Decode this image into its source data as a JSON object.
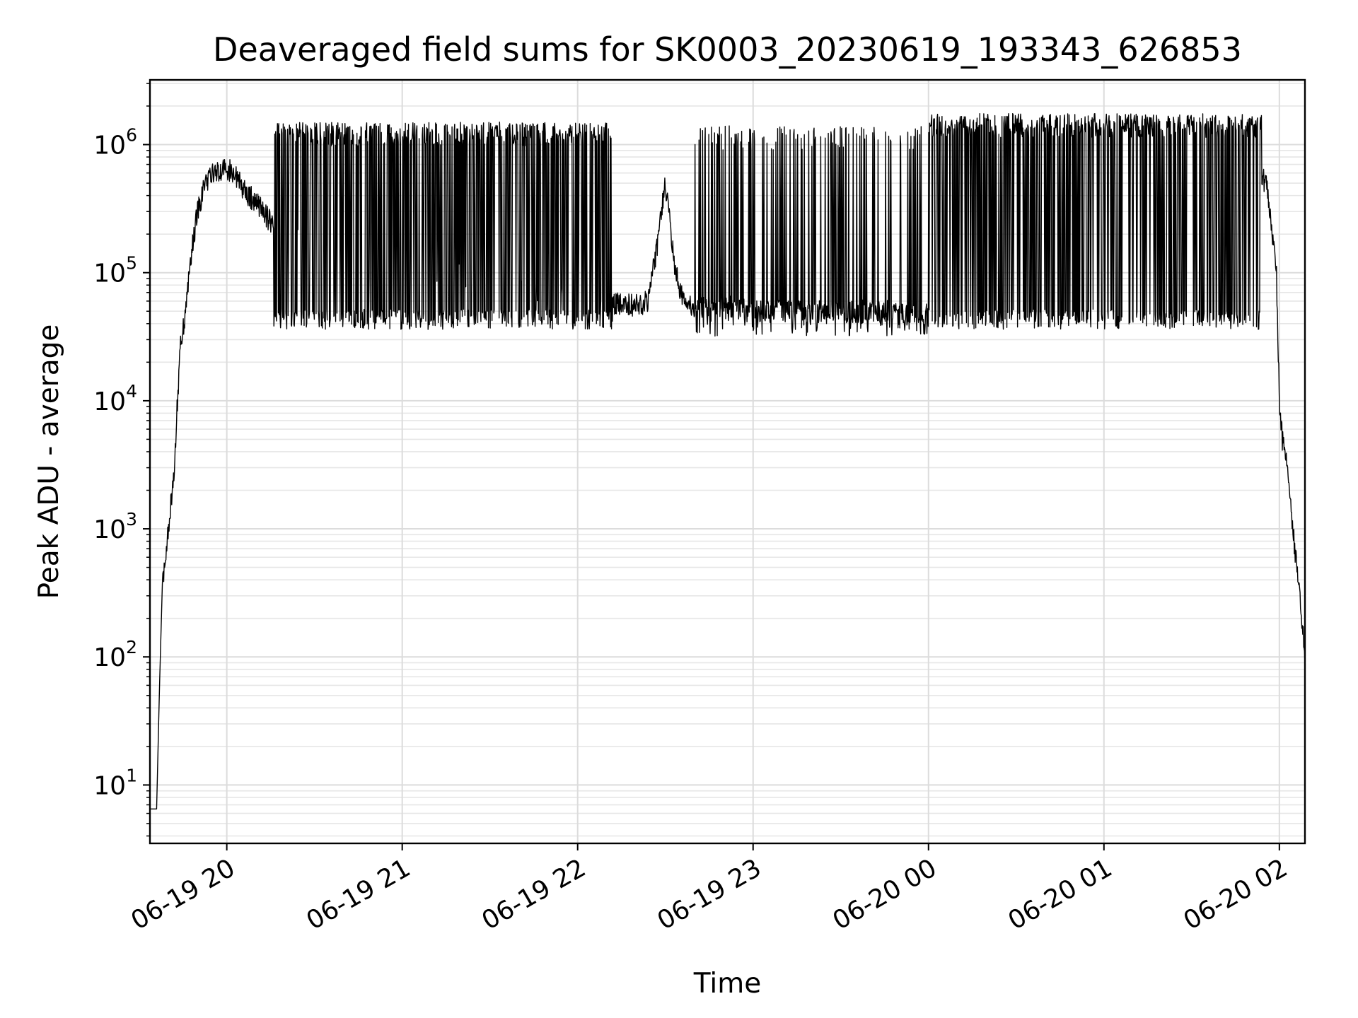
{
  "chart_data": {
    "type": "line",
    "title": "Deaveraged field sums for SK0003_20230619_193343_626853",
    "xlabel": "Time",
    "ylabel": "Peak ADU - average",
    "yscale": "log",
    "ylim": [
      3.5,
      3200000
    ],
    "xlim": [
      "2023-06-19 19:33:43",
      "2023-06-20 02:08:45"
    ],
    "x_ticks": [
      "06-19 20",
      "06-19 21",
      "06-19 22",
      "06-19 23",
      "06-20 00",
      "06-20 01",
      "06-20 02"
    ],
    "y_ticks": [
      {
        "base": "10",
        "exp": "1",
        "value": 10
      },
      {
        "base": "10",
        "exp": "2",
        "value": 100
      },
      {
        "base": "10",
        "exp": "3",
        "value": 1000
      },
      {
        "base": "10",
        "exp": "4",
        "value": 10000
      },
      {
        "base": "10",
        "exp": "5",
        "value": 100000
      },
      {
        "base": "10",
        "exp": "6",
        "value": 1000000
      }
    ],
    "grid": true,
    "line_color": "#000000",
    "series": [
      {
        "baseline_x": [
          "2023-06-19 19:33:43",
          "2023-06-19 19:36:00",
          "2023-06-19 19:37:00",
          "2023-06-19 19:38:00",
          "2023-06-19 19:39:00",
          "2023-06-19 19:40:00",
          "2023-06-19 19:42:00",
          "2023-06-19 19:44:00",
          "2023-06-19 19:46:00",
          "2023-06-19 19:48:00",
          "2023-06-19 19:50:00",
          "2023-06-19 19:52:00",
          "2023-06-19 19:54:00",
          "2023-06-19 19:56:00",
          "2023-06-19 19:58:00",
          "2023-06-19 20:00:00",
          "2023-06-19 20:03:00",
          "2023-06-19 20:06:00",
          "2023-06-19 20:10:00",
          "2023-06-19 20:15:00",
          "2023-06-19 20:20:00",
          "2023-06-19 20:30:00",
          "2023-06-19 20:40:00",
          "2023-06-19 20:50:00",
          "2023-06-19 21:00:00",
          "2023-06-19 21:15:00",
          "2023-06-19 21:30:00",
          "2023-06-19 21:45:00",
          "2023-06-19 22:00:00",
          "2023-06-19 22:10:00",
          "2023-06-19 22:20:00",
          "2023-06-19 22:24:00",
          "2023-06-19 22:27:00",
          "2023-06-19 22:30:00",
          "2023-06-19 22:33:00",
          "2023-06-19 22:36:00",
          "2023-06-19 22:40:00",
          "2023-06-19 22:50:00",
          "2023-06-19 23:00:00",
          "2023-06-19 23:20:00",
          "2023-06-19 23:40:00",
          "2023-06-20 00:00:00",
          "2023-06-20 00:20:00",
          "2023-06-20 00:40:00",
          "2023-06-20 00:50:00",
          "2023-06-20 01:00:00",
          "2023-06-20 01:10:00",
          "2023-06-20 01:20:00",
          "2023-06-20 01:30:00",
          "2023-06-20 01:40:00",
          "2023-06-20 01:48:00",
          "2023-06-20 01:52:00",
          "2023-06-20 01:56:00",
          "2023-06-20 01:59:00",
          "2023-06-20 02:00:00",
          "2023-06-20 02:01:00",
          "2023-06-20 02:03:00",
          "2023-06-20 02:05:00",
          "2023-06-20 02:07:00",
          "2023-06-20 02:08:45"
        ],
        "baseline_y": [
          6.5,
          6.5,
          60,
          400,
          600,
          1000,
          3000,
          25000,
          50000,
          150000,
          300000,
          450000,
          560000,
          620000,
          640000,
          660000,
          560000,
          440000,
          350000,
          250000,
          200000,
          150000,
          110000,
          100000,
          110000,
          100000,
          85000,
          70000,
          60000,
          58000,
          55000,
          60000,
          150000,
          500000,
          120000,
          60000,
          55000,
          55000,
          52000,
          50000,
          50000,
          48000,
          50000,
          55000,
          70000,
          100000,
          150000,
          250000,
          350000,
          450000,
          650000,
          700000,
          450000,
          100000,
          10000,
          5000,
          3000,
          800,
          300,
          100
        ],
        "spike_windows": [
          {
            "start": "2023-06-19 20:16:00",
            "end": "2023-06-19 22:12:00",
            "low": 40000,
            "high": 1500000,
            "count": 260
          },
          {
            "start": "2023-06-19 22:40:00",
            "end": "2023-06-20 00:00:00",
            "low": 35000,
            "high": 1400000,
            "count": 70
          },
          {
            "start": "2023-06-20 00:00:00",
            "end": "2023-06-20 01:54:00",
            "low": 40000,
            "high": 1750000,
            "count": 280
          }
        ]
      }
    ]
  }
}
